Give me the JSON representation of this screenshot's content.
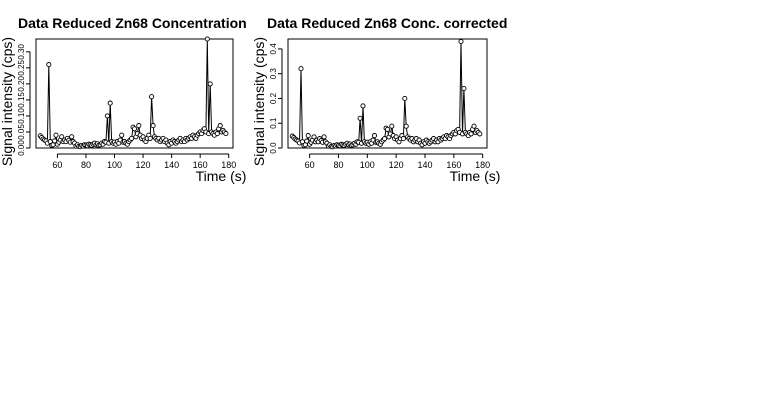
{
  "colors": {
    "background": "#ffffff",
    "ink": "#000000"
  },
  "chart_data": [
    {
      "type": "scatter",
      "title": "Data Reduced Zn68 Concentration",
      "xlabel": "Time (s)",
      "ylabel": "Signal intensity (cps)",
      "xlim": [
        45,
        183
      ],
      "ylim": [
        0,
        0.34
      ],
      "xticks": [
        "60",
        "80",
        "100",
        "120",
        "140",
        "160",
        "180"
      ],
      "yticks": [
        "0.00",
        "0.05",
        "0.10",
        "0.15",
        "0.20",
        "0.25",
        "0.30"
      ],
      "grid": false,
      "legend": "none",
      "series": [
        {
          "x": [
            48,
            49,
            50,
            51,
            52,
            53,
            54,
            55,
            56,
            57,
            58,
            59,
            60,
            61,
            62,
            63,
            64,
            65,
            66,
            67,
            68,
            69,
            70,
            71,
            72,
            73,
            74,
            75,
            76,
            77,
            78,
            79,
            80,
            81,
            82,
            83,
            84,
            85,
            86,
            87,
            88,
            89,
            90,
            91,
            92,
            93,
            94,
            95,
            96,
            97,
            98,
            99,
            100,
            101,
            102,
            103,
            104,
            105,
            106,
            107,
            108,
            109,
            110,
            111,
            112,
            113,
            114,
            115,
            116,
            117,
            118,
            119,
            120,
            121,
            122,
            123,
            124,
            125,
            126,
            127,
            128,
            129,
            130,
            131,
            132,
            133,
            134,
            135,
            136,
            137,
            138,
            139,
            140,
            141,
            142,
            143,
            144,
            145,
            146,
            147,
            148,
            149,
            150,
            151,
            152,
            153,
            154,
            155,
            156,
            157,
            158,
            159,
            160,
            161,
            162,
            163,
            164,
            165,
            166,
            167,
            168,
            169,
            170,
            171,
            172,
            173,
            174,
            175,
            176,
            177,
            178
          ],
          "y": [
            0.038,
            0.033,
            0.028,
            0.025,
            0.022,
            0.015,
            0.26,
            0.02,
            0.008,
            0.01,
            0.022,
            0.04,
            0.012,
            0.018,
            0.025,
            0.035,
            0.02,
            0.025,
            0.02,
            0.03,
            0.024,
            0.018,
            0.035,
            0.02,
            0.015,
            0.006,
            0.01,
            0.005,
            0.004,
            0.008,
            0.006,
            0.01,
            0.009,
            0.007,
            0.012,
            0.01,
            0.008,
            0.012,
            0.015,
            0.01,
            0.013,
            0.008,
            0.01,
            0.015,
            0.012,
            0.02,
            0.018,
            0.1,
            0.015,
            0.14,
            0.02,
            0.015,
            0.018,
            0.012,
            0.02,
            0.015,
            0.025,
            0.04,
            0.018,
            0.02,
            0.015,
            0.012,
            0.02,
            0.025,
            0.03,
            0.065,
            0.06,
            0.035,
            0.045,
            0.07,
            0.04,
            0.03,
            0.035,
            0.025,
            0.02,
            0.03,
            0.04,
            0.03,
            0.16,
            0.07,
            0.035,
            0.03,
            0.025,
            0.03,
            0.02,
            0.025,
            0.03,
            0.02,
            0.025,
            0.015,
            0.01,
            0.02,
            0.015,
            0.025,
            0.02,
            0.015,
            0.02,
            0.025,
            0.03,
            0.02,
            0.025,
            0.02,
            0.03,
            0.025,
            0.03,
            0.035,
            0.03,
            0.04,
            0.035,
            0.03,
            0.04,
            0.045,
            0.05,
            0.045,
            0.055,
            0.06,
            0.05,
            0.34,
            0.045,
            0.2,
            0.05,
            0.045,
            0.04,
            0.05,
            0.045,
            0.06,
            0.07,
            0.05,
            0.055,
            0.05,
            0.045
          ],
          "y_alt": [
            0.038,
            0.033,
            0.028,
            0.025,
            0.022,
            0.015,
            0.26,
            0.02,
            0.008,
            0.01,
            0.022,
            0.04,
            0.012,
            0.018,
            0.025,
            0.035,
            0.02,
            0.025,
            0.02,
            0.03,
            0.024,
            0.018,
            0.035,
            0.02,
            0.015,
            0.006,
            0.01,
            0.005,
            0.004,
            0.008,
            0.006,
            0.01,
            0.009,
            0.007,
            0.012,
            0.01,
            0.008,
            0.012,
            0.015,
            0.01,
            0.013,
            0.008,
            0.01,
            0.015,
            0.012,
            0.02,
            0.018,
            0.1,
            0.015,
            0.14,
            0.02,
            0.015,
            0.018,
            0.012,
            0.02,
            0.015,
            0.025,
            0.04,
            0.018,
            0.02,
            0.015,
            0.012,
            0.02,
            0.025,
            0.03,
            0.065,
            0.06,
            0.035,
            0.045,
            0.07,
            0.04,
            0.03,
            0.035,
            0.025,
            0.02,
            0.03,
            0.04,
            0.03,
            0.16,
            0.07,
            0.035,
            0.03,
            0.025,
            0.03,
            0.02,
            0.025,
            0.03,
            0.02,
            0.025,
            0.015,
            0.01,
            0.02,
            0.015,
            0.025,
            0.02,
            0.015,
            0.02,
            0.025,
            0.03,
            0.02,
            0.025,
            0.02,
            0.03,
            0.025,
            0.03,
            0.035,
            0.03,
            0.04,
            0.035,
            0.03,
            0.04,
            0.045,
            0.05,
            0.045,
            0.055,
            0.06,
            0.05,
            0.34,
            0.045,
            0.2,
            0.05,
            0.045,
            0.04,
            0.05,
            0.045,
            0.06,
            0.07,
            0.05,
            0.055,
            0.05,
            0.045
          ]
        }
      ]
    },
    {
      "type": "scatter",
      "title": "Data Reduced Zn68 Conc. corrected",
      "xlabel": "Time (s)",
      "ylabel": "Signal intensity (cps)",
      "xlim": [
        45,
        183
      ],
      "ylim": [
        0,
        0.44
      ],
      "xticks": [
        "60",
        "80",
        "100",
        "120",
        "140",
        "160",
        "180"
      ],
      "yticks": [
        "0.0",
        "0.1",
        "0.2",
        "0.3",
        "0.4"
      ],
      "grid": false,
      "legend": "none",
      "series": [
        {
          "x": [
            48,
            49,
            50,
            51,
            52,
            53,
            54,
            55,
            56,
            57,
            58,
            59,
            60,
            61,
            62,
            63,
            64,
            65,
            66,
            67,
            68,
            69,
            70,
            71,
            72,
            73,
            74,
            75,
            76,
            77,
            78,
            79,
            80,
            81,
            82,
            83,
            84,
            85,
            86,
            87,
            88,
            89,
            90,
            91,
            92,
            93,
            94,
            95,
            96,
            97,
            98,
            99,
            100,
            101,
            102,
            103,
            104,
            105,
            106,
            107,
            108,
            109,
            110,
            111,
            112,
            113,
            114,
            115,
            116,
            117,
            118,
            119,
            120,
            121,
            122,
            123,
            124,
            125,
            126,
            127,
            128,
            129,
            130,
            131,
            132,
            133,
            134,
            135,
            136,
            137,
            138,
            139,
            140,
            141,
            142,
            143,
            144,
            145,
            146,
            147,
            148,
            149,
            150,
            151,
            152,
            153,
            154,
            155,
            156,
            157,
            158,
            159,
            160,
            161,
            162,
            163,
            164,
            165,
            166,
            167,
            168,
            169,
            170,
            171,
            172,
            173,
            174,
            175,
            176,
            177,
            178
          ],
          "y": [
            0.048,
            0.042,
            0.036,
            0.032,
            0.028,
            0.02,
            0.32,
            0.025,
            0.01,
            0.013,
            0.028,
            0.05,
            0.015,
            0.023,
            0.032,
            0.045,
            0.025,
            0.032,
            0.025,
            0.038,
            0.03,
            0.023,
            0.045,
            0.025,
            0.019,
            0.008,
            0.013,
            0.006,
            0.005,
            0.01,
            0.008,
            0.013,
            0.011,
            0.009,
            0.015,
            0.013,
            0.01,
            0.015,
            0.019,
            0.013,
            0.016,
            0.01,
            0.013,
            0.019,
            0.015,
            0.025,
            0.023,
            0.12,
            0.019,
            0.17,
            0.025,
            0.019,
            0.023,
            0.015,
            0.025,
            0.019,
            0.032,
            0.05,
            0.023,
            0.025,
            0.019,
            0.015,
            0.025,
            0.032,
            0.038,
            0.08,
            0.075,
            0.045,
            0.057,
            0.088,
            0.05,
            0.038,
            0.045,
            0.032,
            0.025,
            0.038,
            0.05,
            0.038,
            0.2,
            0.088,
            0.045,
            0.038,
            0.032,
            0.038,
            0.025,
            0.032,
            0.038,
            0.025,
            0.032,
            0.019,
            0.013,
            0.025,
            0.019,
            0.032,
            0.025,
            0.019,
            0.025,
            0.032,
            0.038,
            0.025,
            0.032,
            0.025,
            0.038,
            0.032,
            0.038,
            0.045,
            0.038,
            0.05,
            0.045,
            0.038,
            0.05,
            0.057,
            0.063,
            0.057,
            0.07,
            0.075,
            0.063,
            0.43,
            0.057,
            0.24,
            0.063,
            0.057,
            0.05,
            0.063,
            0.057,
            0.075,
            0.088,
            0.063,
            0.07,
            0.063,
            0.057
          ]
        }
      ]
    }
  ]
}
